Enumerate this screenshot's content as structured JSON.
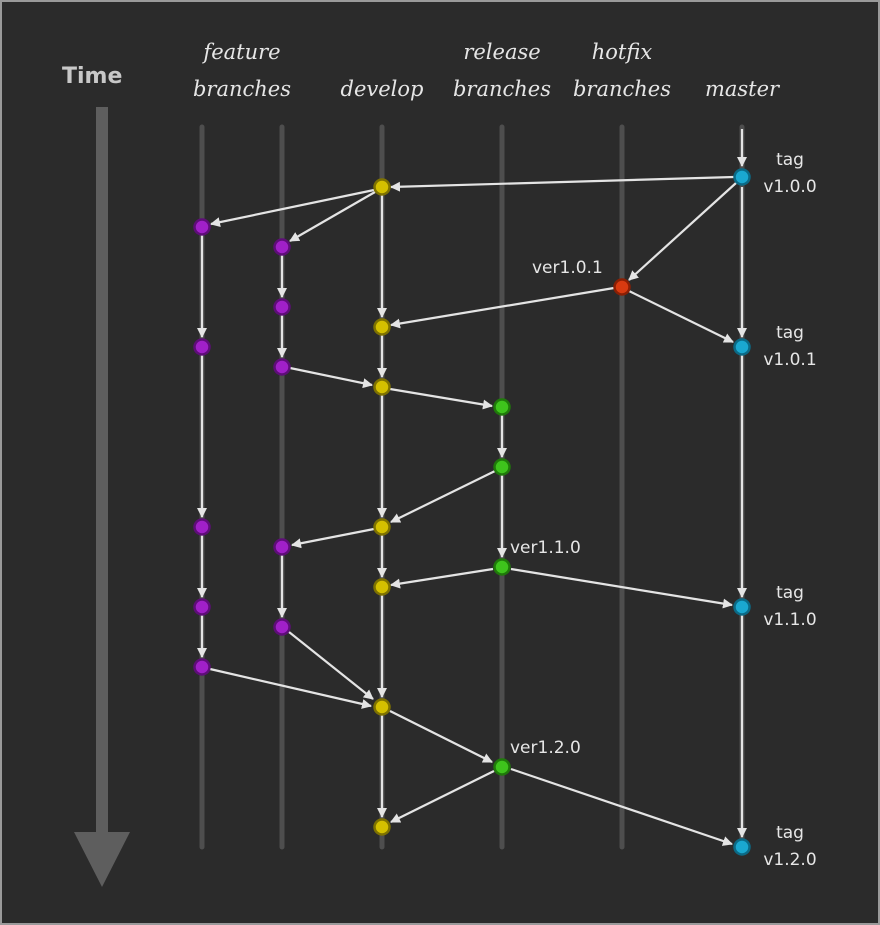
{
  "time_label": "Time",
  "headers": {
    "feature": "feature\nbranches",
    "develop": "develop",
    "release": "release\nbranches",
    "hotfix": "hotfix\nbranches",
    "master": "master"
  },
  "tags": {
    "t100": "tag\nv1.0.0",
    "t101": "tag\nv1.0.1",
    "t110": "tag\nv1.1.0",
    "t120": "tag\nv1.2.0"
  },
  "versions": {
    "v101": "ver1.0.1",
    "v110": "ver1.1.0",
    "v120": "ver1.2.0"
  },
  "colors": {
    "background": "#2b2b2b",
    "lane": "#4e4e4e",
    "time_arrow": "#5e5e5e",
    "arrow": "#e4e4e4",
    "feature": "#a020c8",
    "develop": "#d4c000",
    "release": "#3ec41c",
    "hotfix": "#d83a10",
    "master": "#1aa8d0"
  }
}
